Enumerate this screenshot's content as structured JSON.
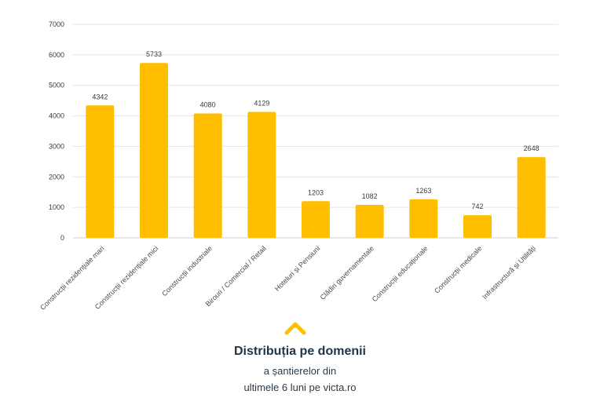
{
  "chart_data": {
    "type": "bar",
    "categories": [
      "Construcții rezidențiale mari",
      "Construcții rezidențiale mici",
      "Construcții industriale",
      "Birouri / Comercial / Retail",
      "Hoteluri și Pensiuni",
      "Clădiri guvernamentale",
      "Construcții educaționale",
      "Construcții medicale",
      "Infrastructură și Utilități"
    ],
    "values": [
      4342,
      5733,
      4080,
      4129,
      1203,
      1082,
      1263,
      742,
      2648
    ],
    "value_labels": [
      "4342",
      "5733",
      "4080",
      "4129",
      "1203",
      "1082",
      "1263",
      "742",
      "2648"
    ],
    "yticks": [
      "0",
      "1000",
      "2000",
      "3000",
      "4000",
      "5000",
      "6000",
      "7000"
    ],
    "ylim": [
      0,
      7000
    ],
    "grid": true,
    "bar_color": "#FFBF00",
    "title": "",
    "xlabel": "",
    "ylabel": ""
  },
  "caption": {
    "title": "Distribuția pe domenii",
    "line1": "a șantierelor din",
    "line2": "ultimele 6 luni pe victa.ro",
    "accent_icon": "chevron-up-icon",
    "accent_color": "#FFBF00"
  }
}
